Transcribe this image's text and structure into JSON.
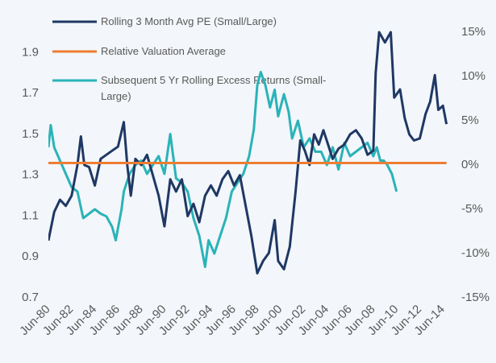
{
  "chart_data": {
    "type": "line",
    "series": [
      {
        "name": "Rolling 3 Month Avg PE (Small/Large)",
        "color": "#1f3864",
        "axis": "y",
        "x": [
          1980.5,
          1981,
          1981.5,
          1982,
          1982.5,
          1983,
          1983.3,
          1983.6,
          1984,
          1984.5,
          1985,
          1985.5,
          1986,
          1986.5,
          1987,
          1987.3,
          1987.6,
          1988,
          1988.5,
          1989,
          1989.5,
          1990,
          1990.5,
          1991,
          1991.5,
          1992,
          1992.5,
          1993,
          1993.5,
          1994,
          1994.5,
          1995,
          1995.5,
          1996,
          1996.5,
          1997,
          1997.5,
          1998,
          1998.5,
          1999,
          1999.5,
          2000,
          2000.3,
          2000.8,
          2001.3,
          2001.8,
          2002.2,
          2002.6,
          2003,
          2003.4,
          2003.8,
          2004.2,
          2004.6,
          2005,
          2005.5,
          2006,
          2006.5,
          2007,
          2007.5,
          2008,
          2008.5,
          2008.7,
          2009,
          2009.5,
          2010,
          2010.3,
          2010.8,
          2011.2,
          2011.6,
          2012,
          2012.5,
          2013,
          2013.4,
          2013.8,
          2014.1,
          2014.5,
          2014.8
        ],
        "values": [
          0.98,
          1.12,
          1.18,
          1.15,
          1.2,
          1.35,
          1.49,
          1.35,
          1.34,
          1.25,
          1.38,
          1.4,
          1.42,
          1.44,
          1.56,
          1.35,
          1.2,
          1.38,
          1.35,
          1.4,
          1.3,
          1.2,
          1.05,
          1.28,
          1.22,
          1.28,
          1.1,
          1.16,
          1.07,
          1.2,
          1.25,
          1.2,
          1.28,
          1.32,
          1.25,
          1.3,
          1.15,
          1.0,
          0.82,
          0.88,
          0.92,
          1.08,
          0.88,
          0.84,
          0.95,
          1.22,
          1.47,
          1.42,
          1.35,
          1.5,
          1.45,
          1.52,
          1.45,
          1.38,
          1.43,
          1.45,
          1.5,
          1.52,
          1.48,
          1.4,
          1.42,
          1.8,
          2.0,
          1.95,
          2.0,
          1.68,
          1.72,
          1.58,
          1.5,
          1.47,
          1.48,
          1.6,
          1.66,
          1.79,
          1.62,
          1.64,
          1.55
        ]
      },
      {
        "name": "Relative Valuation Average",
        "color": "#ed7d31",
        "axis": "y",
        "x": [
          1980.5,
          2014.8
        ],
        "values": [
          1.36,
          1.36
        ]
      },
      {
        "name": "Subsequent 5 Yr Rolling Excess Returns (Small-Large)",
        "color": "#2ab3b8",
        "axis": "y2",
        "x": [
          1980.5,
          1980.7,
          1981,
          1981.5,
          1982,
          1982.5,
          1983,
          1983.5,
          1984,
          1984.5,
          1985,
          1985.5,
          1986,
          1986.3,
          1986.8,
          1987,
          1987.5,
          1988,
          1988.5,
          1989,
          1989.5,
          1990,
          1990.5,
          1991,
          1991.5,
          1992,
          1992.5,
          1993,
          1993.5,
          1994,
          1994.3,
          1994.8,
          1995.3,
          1995.8,
          1996.3,
          1996.8,
          1997.3,
          1997.8,
          1998.2,
          1998.5,
          1998.8,
          1999.2,
          1999.6,
          2000,
          2000.3,
          2000.8,
          2001.2,
          2001.5,
          2002,
          2002.5,
          2003,
          2003.5,
          2004,
          2004.5,
          2005,
          2005.5,
          2006,
          2006.5,
          2007,
          2007.5,
          2008,
          2008.5,
          2008.8,
          2009.1,
          2009.4,
          2009.7,
          2010.1,
          2010.5
        ],
        "values": [
          2,
          4.5,
          2,
          0.5,
          -1,
          -2.5,
          -3,
          -6,
          -5.5,
          -5,
          -5.5,
          -5.8,
          -7,
          -8.5,
          -5,
          -3,
          -1,
          0,
          0.5,
          -1,
          0,
          1,
          -1,
          3.5,
          -1.5,
          -2,
          -3,
          -6,
          -8,
          -11.5,
          -8.5,
          -10,
          -8,
          -6,
          -3,
          -2,
          -1,
          1,
          4,
          9,
          10.5,
          9,
          6.5,
          8.5,
          5.5,
          8,
          6,
          3,
          5,
          2,
          3,
          1.5,
          1.5,
          0,
          2,
          -0.5,
          2.5,
          1,
          1.5,
          2,
          2.5,
          1,
          2,
          0.5,
          0.5,
          0,
          -1,
          -3
        ]
      }
    ],
    "xlim": [
      1980.5,
      2014.9
    ],
    "xticks": [
      {
        "value": 1980.5,
        "label": "Jun-80"
      },
      {
        "value": 1982.5,
        "label": "Jun-82"
      },
      {
        "value": 1984.5,
        "label": "Jun-84"
      },
      {
        "value": 1986.5,
        "label": "Jun-86"
      },
      {
        "value": 1988.5,
        "label": "Jun-88"
      },
      {
        "value": 1990.5,
        "label": "Jun-90"
      },
      {
        "value": 1992.5,
        "label": "Jun-92"
      },
      {
        "value": 1994.5,
        "label": "Jun-94"
      },
      {
        "value": 1996.5,
        "label": "Jun-96"
      },
      {
        "value": 1998.5,
        "label": "Jun-98"
      },
      {
        "value": 2000.5,
        "label": "Jun-00"
      },
      {
        "value": 2002.5,
        "label": "Jun-02"
      },
      {
        "value": 2004.5,
        "label": "Jun-04"
      },
      {
        "value": 2006.5,
        "label": "Jun-06"
      },
      {
        "value": 2008.5,
        "label": "Jun-08"
      },
      {
        "value": 2010.5,
        "label": "Jun-10"
      },
      {
        "value": 2012.5,
        "label": "Jun-12"
      },
      {
        "value": 2014.5,
        "label": "Jun-14"
      }
    ],
    "ylim": [
      0.7,
      2.0
    ],
    "yticks": [
      0.7,
      0.9,
      1.1,
      1.3,
      1.5,
      1.7,
      1.9
    ],
    "y2lim": [
      -15,
      15
    ],
    "y2ticks": [
      {
        "value": -15,
        "label": "-15%"
      },
      {
        "value": -10,
        "label": "-10%"
      },
      {
        "value": -5,
        "label": "-5%"
      },
      {
        "value": 0,
        "label": "0%"
      },
      {
        "value": 5,
        "label": "5%"
      },
      {
        "value": 10,
        "label": "10%"
      },
      {
        "value": 15,
        "label": "15%"
      }
    ],
    "legend": "upper left"
  }
}
